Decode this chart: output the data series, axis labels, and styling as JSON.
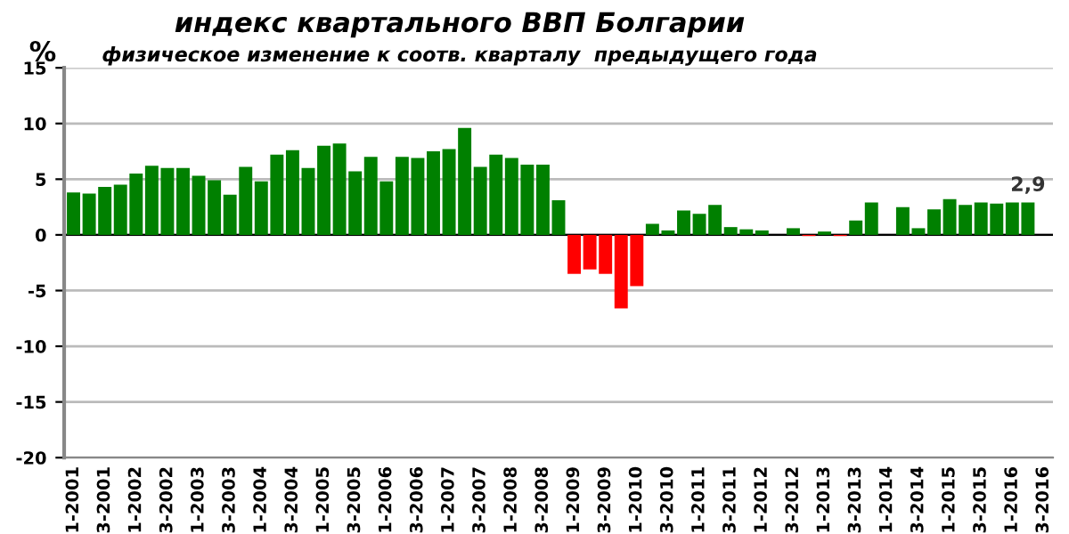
{
  "chart_data": {
    "type": "bar",
    "title": "индекс квартального ВВП Болгарии",
    "subtitle": "физическое изменение к соотв. кварталу  предыдущего года",
    "ylabel": "%",
    "categories": [
      "1-2001",
      null,
      "3-2001",
      null,
      "1-2002",
      null,
      "3-2002",
      null,
      "1-2003",
      null,
      "3-2003",
      null,
      "1-2004",
      null,
      "3-2004",
      null,
      "1-2005",
      null,
      "3-2005",
      null,
      "1-2006",
      null,
      "3-2006",
      null,
      "1-2007",
      null,
      "3-2007",
      null,
      "1-2008",
      null,
      "3-2008",
      null,
      "1-2009",
      null,
      "3-2009",
      null,
      "1-2010",
      null,
      "3-2010",
      null,
      "1-2011",
      null,
      "3-2011",
      null,
      "1-2012",
      null,
      "3-2012",
      null,
      "1-2013",
      null,
      "3-2013",
      null,
      "1-2014",
      null,
      "3-2014",
      null,
      "1-2015",
      null,
      "3-2015",
      null,
      "1-2016",
      null,
      "3-2016"
    ],
    "values": [
      3.8,
      3.7,
      4.3,
      4.5,
      5.5,
      6.2,
      6.0,
      6.0,
      5.3,
      4.9,
      3.6,
      6.1,
      4.8,
      7.2,
      7.6,
      6.0,
      8.0,
      8.2,
      5.7,
      7.0,
      4.8,
      7.0,
      6.9,
      7.5,
      7.7,
      9.6,
      6.1,
      7.2,
      6.9,
      6.3,
      6.3,
      3.1,
      -3.5,
      -3.1,
      -3.5,
      -6.6,
      -4.6,
      1.0,
      0.4,
      2.2,
      1.9,
      2.7,
      0.7,
      0.5,
      0.4,
      0,
      0.6,
      -0.1,
      0.3,
      -0.1,
      1.3,
      2.9,
      0,
      2.5,
      0.6,
      2.3,
      3.2,
      2.7,
      2.9,
      2.8,
      2.9,
      2.9,
      null
    ],
    "colors": [
      "#008000",
      "#008000",
      "#008000",
      "#008000",
      "#008000",
      "#008000",
      "#008000",
      "#008000",
      "#008000",
      "#008000",
      "#008000",
      "#008000",
      "#008000",
      "#008000",
      "#008000",
      "#008000",
      "#008000",
      "#008000",
      "#008000",
      "#008000",
      "#008000",
      "#008000",
      "#008000",
      "#008000",
      "#008000",
      "#008000",
      "#008000",
      "#008000",
      "#008000",
      "#008000",
      "#008000",
      "#008000",
      "#ff0000",
      "#ff0000",
      "#ff0000",
      "#ff0000",
      "#ff0000",
      "#008000",
      "#008000",
      "#008000",
      "#008000",
      "#008000",
      "#008000",
      "#008000",
      "#008000",
      "#008000",
      "#008000",
      "#ff0000",
      "#008000",
      "#ff0000",
      "#008000",
      "#008000",
      "#008000",
      "#008000",
      "#008000",
      "#008000",
      "#008000",
      "#008000",
      "#008000",
      "#008000",
      "#008000",
      "#008000",
      "#008000"
    ],
    "value_labels": [
      null,
      null,
      null,
      null,
      null,
      null,
      null,
      null,
      null,
      null,
      null,
      null,
      null,
      null,
      null,
      null,
      null,
      null,
      null,
      null,
      null,
      null,
      null,
      null,
      null,
      null,
      null,
      null,
      null,
      null,
      null,
      null,
      null,
      null,
      null,
      null,
      null,
      null,
      null,
      null,
      null,
      null,
      null,
      null,
      null,
      null,
      null,
      null,
      null,
      null,
      null,
      null,
      null,
      null,
      null,
      null,
      null,
      null,
      null,
      null,
      null,
      "2,9",
      null
    ],
    "ylim": [
      -20,
      15
    ],
    "yticks": [
      -20,
      -15,
      -10,
      -5,
      0,
      5,
      10,
      15
    ],
    "grid": "y"
  }
}
